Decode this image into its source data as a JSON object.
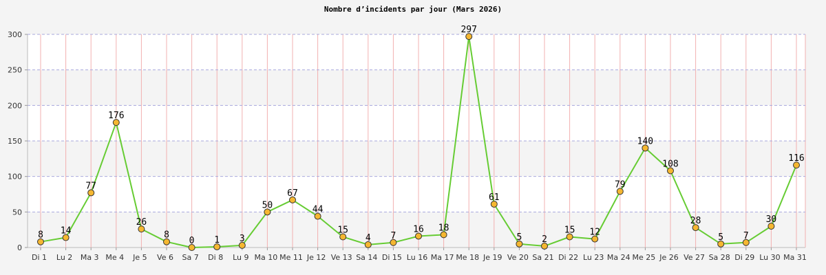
{
  "chart_data": {
    "type": "line",
    "title": "Nombre d’incidents par jour (Mars 2026)",
    "xlabel": "",
    "ylabel": "",
    "ylim": [
      0,
      300
    ],
    "yticks": [
      0,
      50,
      100,
      150,
      200,
      250,
      300
    ],
    "grid": true,
    "categories": [
      "Di 1",
      "Lu 2",
      "Ma 3",
      "Me 4",
      "Je 5",
      "Ve 6",
      "Sa 7",
      "Di 8",
      "Lu 9",
      "Ma 10",
      "Me 11",
      "Je 12",
      "Ve 13",
      "Sa 14",
      "Di 15",
      "Lu 16",
      "Ma 17",
      "Me 18",
      "Je 19",
      "Ve 20",
      "Sa 21",
      "Di 22",
      "Lu 23",
      "Ma 24",
      "Me 25",
      "Je 26",
      "Ve 27",
      "Sa 28",
      "Di 29",
      "Lu 30",
      "Ma 31"
    ],
    "series": [
      {
        "values": [
          8,
          14,
          77,
          176,
          26,
          8,
          0,
          1,
          3,
          50,
          67,
          44,
          15,
          4,
          7,
          16,
          18,
          297,
          61,
          5,
          2,
          15,
          12,
          79,
          140,
          108,
          28,
          5,
          7,
          30,
          116
        ]
      }
    ],
    "colors": {
      "line": "#66cc33",
      "marker_fill": "#f5b731",
      "marker_stroke": "#333333",
      "band": "#f4f4f4",
      "vgrid": "#f2b0b0",
      "hgrid": "#a8a8dd"
    }
  }
}
